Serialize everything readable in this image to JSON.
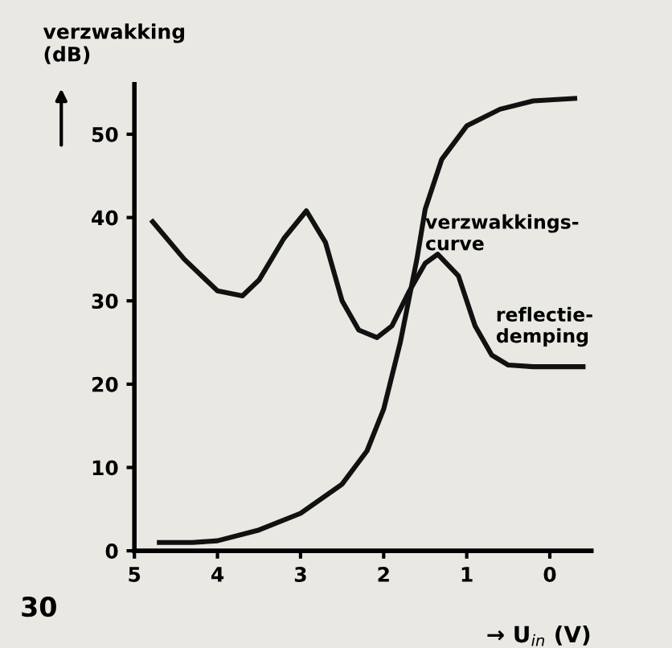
{
  "chart_data": {
    "type": "line",
    "ylabel": "verzwakking\n(dB)",
    "xlabel": "→ U$_{in}$ (V)",
    "xlim": [
      5,
      -0.5
    ],
    "xticks": [
      5,
      4,
      3,
      2,
      1,
      0
    ],
    "ylim": [
      0,
      56
    ],
    "yticks": [
      0,
      10,
      20,
      30,
      40,
      50
    ],
    "grid": false,
    "legend": false,
    "marker": "none",
    "line_style": "solid",
    "annotations": [
      "30"
    ],
    "series": [
      {
        "name": "verzwakkings-\ncurve",
        "color": "#111111",
        "x": [
          4.7,
          4.3,
          4.0,
          3.5,
          3.0,
          2.5,
          2.2,
          2.0,
          1.8,
          1.6,
          1.5,
          1.3,
          1.0,
          0.6,
          0.2,
          -0.3
        ],
        "values": [
          1,
          1,
          1.2,
          2.5,
          4.5,
          8,
          12,
          17,
          25,
          35,
          41,
          47,
          51,
          53,
          54,
          54.3
        ]
      },
      {
        "name": "reflectie-\ndemping",
        "color": "#111111",
        "x": [
          4.78,
          4.4,
          4.0,
          3.7,
          3.5,
          3.2,
          2.93,
          2.7,
          2.5,
          2.3,
          2.08,
          1.9,
          1.7,
          1.5,
          1.35,
          1.1,
          0.9,
          0.7,
          0.5,
          0.2,
          -0.4
        ],
        "values": [
          39.5,
          35,
          31.2,
          30.6,
          32.5,
          37.5,
          40.8,
          37,
          30,
          26.5,
          25.6,
          27,
          31,
          34.5,
          35.6,
          33,
          27,
          23.5,
          22.3,
          22.1,
          22.1
        ]
      }
    ]
  }
}
